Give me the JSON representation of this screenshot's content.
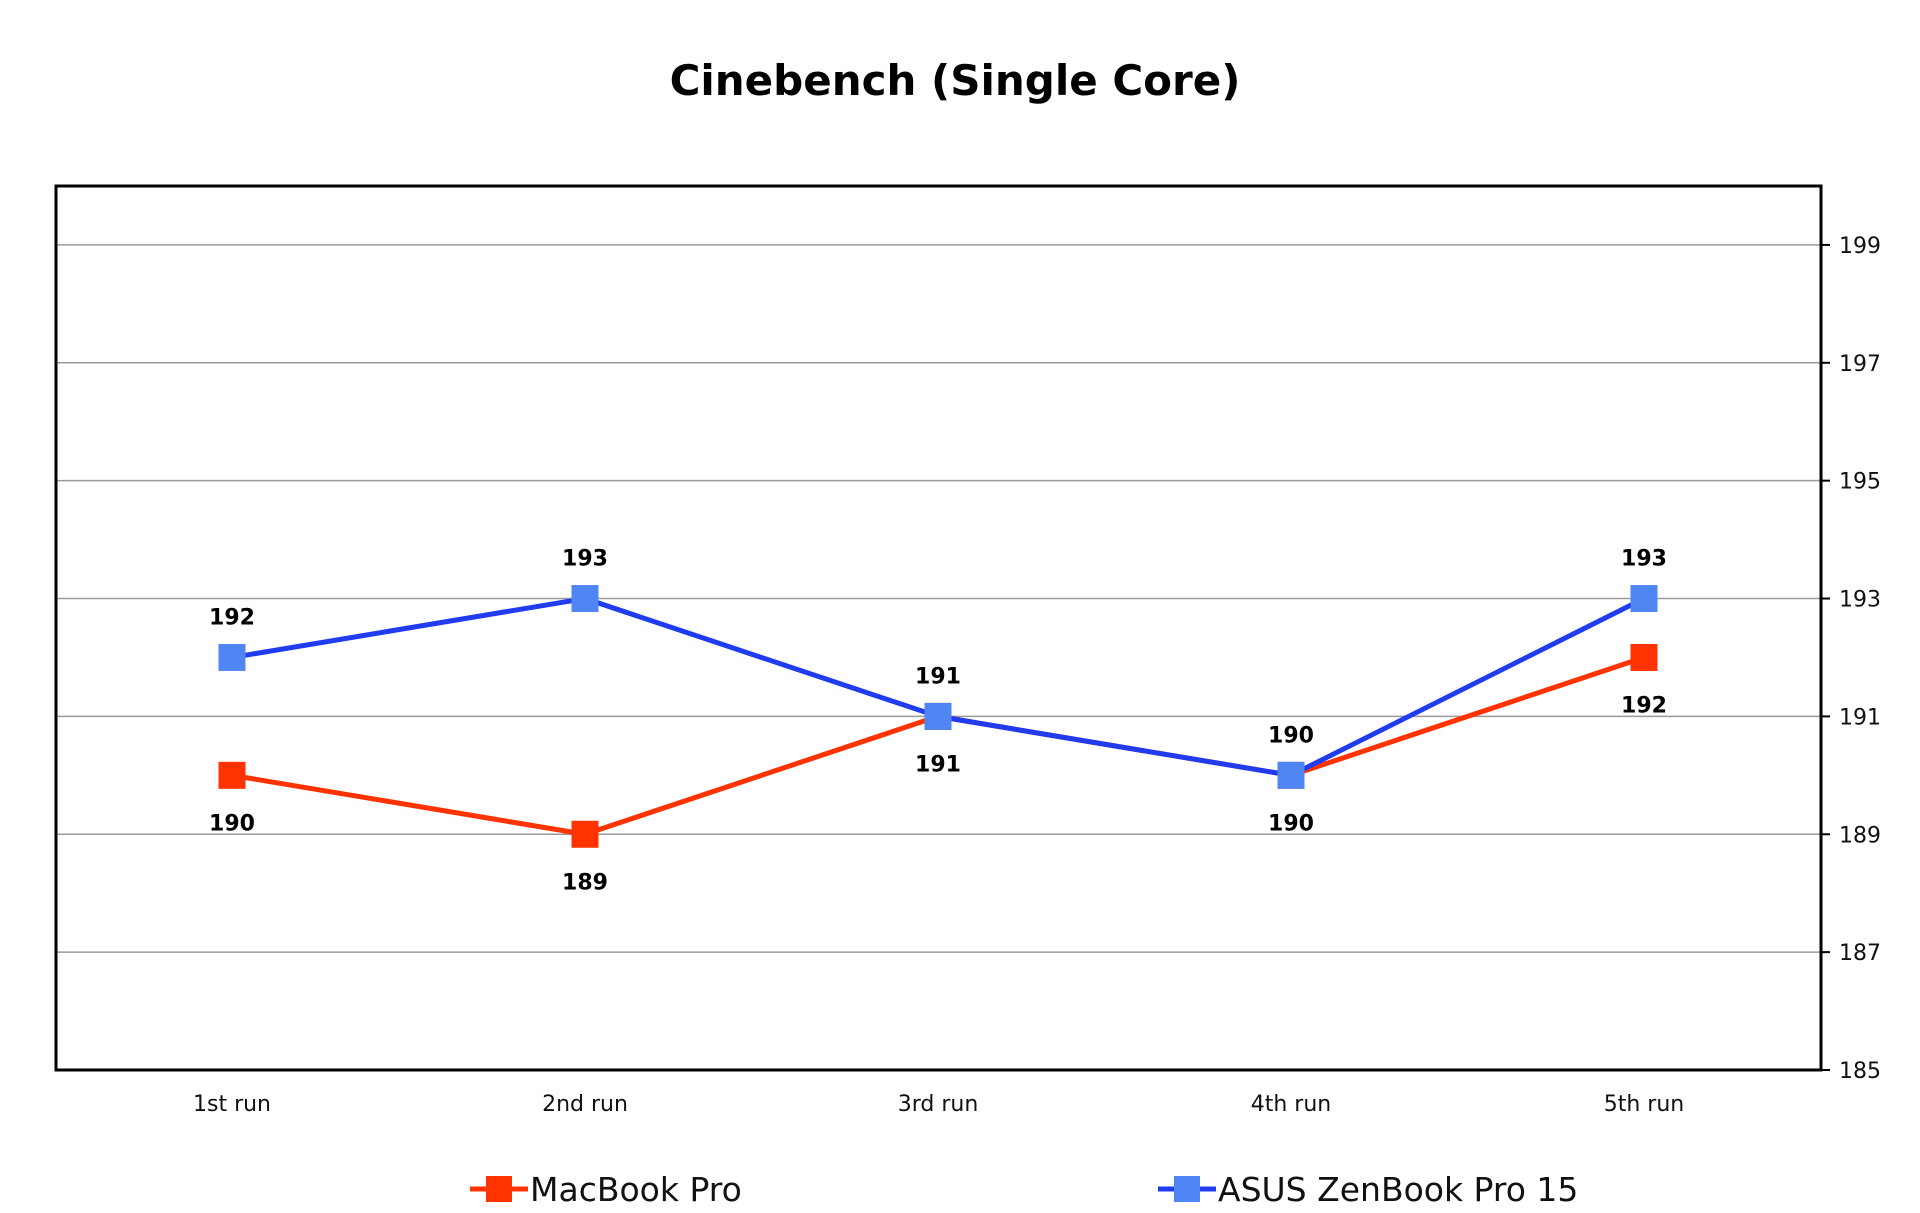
{
  "chart_data": {
    "type": "line",
    "title": "Cinebench (Single Core)",
    "xlabel": "",
    "ylabel": "",
    "categories": [
      "1st run",
      "2nd run",
      "3rd run",
      "4th run",
      "5th run"
    ],
    "y_axis_side": "right",
    "ylim": [
      185,
      200
    ],
    "yticks": [
      185,
      187,
      189,
      191,
      193,
      195,
      197,
      199
    ],
    "grid": true,
    "legend_position": "bottom",
    "series": [
      {
        "name": "MacBook Pro",
        "color": "#ff3300",
        "values": [
          190,
          189,
          191,
          190,
          192
        ],
        "label_position": "below"
      },
      {
        "name": "ASUS ZenBook Pro 15",
        "color": "#1f3cf0",
        "marker_color": "#4f86f4",
        "values": [
          192,
          193,
          191,
          190,
          193
        ],
        "label_position": "above"
      }
    ]
  }
}
